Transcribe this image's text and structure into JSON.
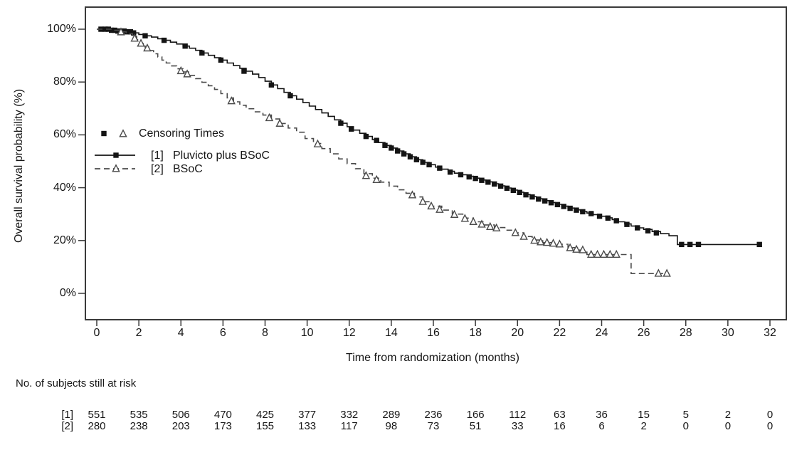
{
  "chart_data": {
    "type": "line",
    "subtype": "kaplan_meier_step",
    "title": "",
    "xlabel": "Time from randomization (months)",
    "ylabel": "Overall survival probability (%)",
    "xlim": [
      0,
      32
    ],
    "ylim": [
      0,
      100
    ],
    "grid": false,
    "frame_color": "#3a3a3a",
    "x_ticks": [
      0,
      2,
      4,
      6,
      8,
      10,
      12,
      14,
      16,
      18,
      20,
      22,
      24,
      26,
      28,
      30,
      32
    ],
    "y_ticks": [
      {
        "value": 100,
        "label": "100%"
      },
      {
        "value": 80,
        "label": "80%"
      },
      {
        "value": 60,
        "label": "60%"
      },
      {
        "value": 40,
        "label": "40%"
      },
      {
        "value": 20,
        "label": "20%"
      },
      {
        "value": 0,
        "label": "0%"
      }
    ],
    "legend": {
      "censoring_label": "Censoring Times",
      "position": "inside-left"
    },
    "series": [
      {
        "id": "[1]",
        "name": "Pluvicto plus BSoC",
        "line": "solid",
        "marker": "filled-square",
        "color": "#141414",
        "steps": [
          [
            0,
            100
          ],
          [
            0.6,
            99.6
          ],
          [
            1,
            99.3
          ],
          [
            1.4,
            99
          ],
          [
            1.7,
            98.6
          ],
          [
            2,
            98
          ],
          [
            2.3,
            97.5
          ],
          [
            2.6,
            97
          ],
          [
            2.9,
            96.4
          ],
          [
            3.2,
            95.8
          ],
          [
            3.5,
            95.1
          ],
          [
            3.8,
            94.4
          ],
          [
            4.1,
            93.6
          ],
          [
            4.4,
            92.8
          ],
          [
            4.7,
            92
          ],
          [
            5,
            91
          ],
          [
            5.3,
            90.1
          ],
          [
            5.6,
            89.2
          ],
          [
            5.9,
            88.3
          ],
          [
            6.2,
            87.2
          ],
          [
            6.5,
            86.2
          ],
          [
            6.8,
            85.2
          ],
          [
            7.1,
            84.1
          ],
          [
            7.4,
            83
          ],
          [
            7.7,
            81.7
          ],
          [
            8,
            80.3
          ],
          [
            8.3,
            78.9
          ],
          [
            8.6,
            77.5
          ],
          [
            8.9,
            76.1
          ],
          [
            9.2,
            74.8
          ],
          [
            9.5,
            73.5
          ],
          [
            9.8,
            72.2
          ],
          [
            10.1,
            70.9
          ],
          [
            10.4,
            69.6
          ],
          [
            10.7,
            68.3
          ],
          [
            11,
            67
          ],
          [
            11.3,
            65.7
          ],
          [
            11.6,
            64.4
          ],
          [
            11.9,
            63.1
          ],
          [
            12.2,
            61.8
          ],
          [
            12.5,
            60.6
          ],
          [
            12.8,
            59.4
          ],
          [
            13.1,
            58.2
          ],
          [
            13.4,
            57.1
          ],
          [
            13.7,
            56
          ],
          [
            14,
            55
          ],
          [
            14.3,
            53.9
          ],
          [
            14.6,
            52.8
          ],
          [
            14.9,
            51.7
          ],
          [
            15.2,
            50.6
          ],
          [
            15.5,
            49.6
          ],
          [
            15.8,
            48.7
          ],
          [
            16.1,
            47.8
          ],
          [
            16.4,
            47
          ],
          [
            16.7,
            46.2
          ],
          [
            17,
            45.5
          ],
          [
            17.3,
            44.9
          ],
          [
            17.6,
            44.3
          ],
          [
            17.9,
            43.6
          ],
          [
            18.2,
            42.9
          ],
          [
            18.5,
            42.2
          ],
          [
            18.8,
            41.5
          ],
          [
            19.1,
            40.7
          ],
          [
            19.4,
            39.9
          ],
          [
            19.7,
            39.1
          ],
          [
            20,
            38.3
          ],
          [
            20.3,
            37.4
          ],
          [
            20.6,
            36.6
          ],
          [
            20.9,
            35.8
          ],
          [
            21.2,
            35.1
          ],
          [
            21.5,
            34.4
          ],
          [
            21.8,
            33.7
          ],
          [
            22.1,
            33
          ],
          [
            22.4,
            32.3
          ],
          [
            22.7,
            31.6
          ],
          [
            23,
            31
          ],
          [
            23.3,
            30.4
          ],
          [
            23.6,
            29.8
          ],
          [
            23.9,
            29.2
          ],
          [
            24.2,
            28.6
          ],
          [
            24.5,
            27.9
          ],
          [
            24.8,
            27.1
          ],
          [
            25.1,
            26.3
          ],
          [
            25.4,
            25.5
          ],
          [
            25.7,
            24.8
          ],
          [
            26,
            24.2
          ],
          [
            26.4,
            23.4
          ],
          [
            26.8,
            22.6
          ],
          [
            27.2,
            21.8
          ],
          [
            27.6,
            18.5
          ],
          [
            31.5,
            18.5
          ]
        ],
        "censor_times": [
          [
            0.2,
            100
          ],
          [
            0.4,
            100
          ],
          [
            0.55,
            100
          ],
          [
            0.7,
            99.6
          ],
          [
            0.85,
            99.6
          ],
          [
            1,
            99.3
          ],
          [
            1.15,
            99.3
          ],
          [
            1.3,
            99.3
          ],
          [
            1.45,
            99
          ],
          [
            1.6,
            99
          ],
          [
            1.75,
            98.6
          ],
          [
            2.3,
            97.5
          ],
          [
            3.2,
            95.8
          ],
          [
            4.2,
            93.6
          ],
          [
            5,
            91
          ],
          [
            5.9,
            88.3
          ],
          [
            7,
            84.1
          ],
          [
            8.3,
            78.9
          ],
          [
            9.2,
            74.8
          ],
          [
            11.6,
            64.4
          ],
          [
            12.1,
            62.2
          ],
          [
            12.8,
            59.4
          ],
          [
            13.3,
            57.9
          ],
          [
            13.7,
            56
          ],
          [
            14,
            55
          ],
          [
            14.3,
            53.9
          ],
          [
            14.6,
            52.8
          ],
          [
            14.9,
            51.7
          ],
          [
            15.2,
            50.6
          ],
          [
            15.5,
            49.6
          ],
          [
            15.8,
            48.7
          ],
          [
            16.3,
            47.4
          ],
          [
            16.8,
            45.9
          ],
          [
            17.3,
            44.9
          ],
          [
            17.7,
            44.1
          ],
          [
            18,
            43.5
          ],
          [
            18.3,
            42.8
          ],
          [
            18.6,
            42.1
          ],
          [
            18.9,
            41.4
          ],
          [
            19.2,
            40.6
          ],
          [
            19.5,
            39.8
          ],
          [
            19.8,
            39
          ],
          [
            20.1,
            38.2
          ],
          [
            20.4,
            37.3
          ],
          [
            20.7,
            36.5
          ],
          [
            21,
            35.7
          ],
          [
            21.3,
            35
          ],
          [
            21.6,
            34.3
          ],
          [
            21.9,
            33.6
          ],
          [
            22.2,
            32.9
          ],
          [
            22.5,
            32.2
          ],
          [
            22.8,
            31.5
          ],
          [
            23.1,
            30.9
          ],
          [
            23.5,
            30.2
          ],
          [
            23.9,
            29.2
          ],
          [
            24.3,
            28.5
          ],
          [
            24.7,
            27.5
          ],
          [
            25.2,
            26.1
          ],
          [
            25.7,
            24.8
          ],
          [
            26.2,
            23.7
          ],
          [
            26.6,
            22.9
          ],
          [
            27.8,
            18.5
          ],
          [
            28.2,
            18.5
          ],
          [
            28.6,
            18.5
          ],
          [
            31.5,
            18.5
          ]
        ]
      },
      {
        "id": "[2]",
        "name": "BSoC",
        "line": "dashed",
        "marker": "open-triangle",
        "color": "#4a4a4a",
        "steps": [
          [
            0,
            100
          ],
          [
            0.7,
            99.6
          ],
          [
            1.1,
            99
          ],
          [
            1.4,
            98.3
          ],
          [
            1.7,
            97.3
          ],
          [
            1.9,
            96
          ],
          [
            2.1,
            94.6
          ],
          [
            2.3,
            93.2
          ],
          [
            2.5,
            91.9
          ],
          [
            2.7,
            90.7
          ],
          [
            2.9,
            89.5
          ],
          [
            3.1,
            88.3
          ],
          [
            3.3,
            87.2
          ],
          [
            3.5,
            86.1
          ],
          [
            3.8,
            85
          ],
          [
            4.1,
            83.8
          ],
          [
            4.4,
            82.5
          ],
          [
            4.7,
            81.3
          ],
          [
            5,
            79.9
          ],
          [
            5.3,
            78.6
          ],
          [
            5.6,
            77.2
          ],
          [
            5.9,
            75.6
          ],
          [
            6.2,
            74
          ],
          [
            6.5,
            72.5
          ],
          [
            6.8,
            71.2
          ],
          [
            7.1,
            69.9
          ],
          [
            7.5,
            68.7
          ],
          [
            7.9,
            67.5
          ],
          [
            8.3,
            66
          ],
          [
            8.7,
            64.3
          ],
          [
            9.1,
            62.6
          ],
          [
            9.5,
            61
          ],
          [
            9.9,
            58.6
          ],
          [
            10.3,
            56.7
          ],
          [
            10.7,
            54.8
          ],
          [
            11.1,
            52.8
          ],
          [
            11.5,
            50.9
          ],
          [
            11.9,
            49.1
          ],
          [
            12.3,
            47.2
          ],
          [
            12.7,
            45.3
          ],
          [
            13.1,
            43.6
          ],
          [
            13.5,
            42.1
          ],
          [
            13.9,
            40.6
          ],
          [
            14.3,
            39.2
          ],
          [
            14.7,
            37.9
          ],
          [
            15.1,
            36.5
          ],
          [
            15.5,
            34.7
          ],
          [
            15.9,
            33
          ],
          [
            16.4,
            31.5
          ],
          [
            16.9,
            30
          ],
          [
            17.4,
            28.5
          ],
          [
            17.9,
            27.1
          ],
          [
            18.4,
            25.9
          ],
          [
            18.9,
            24.9
          ],
          [
            19.4,
            23.9
          ],
          [
            19.9,
            22.9
          ],
          [
            20.3,
            21.5
          ],
          [
            20.7,
            20.2
          ],
          [
            21.2,
            19.2
          ],
          [
            21.9,
            18.6
          ],
          [
            22.4,
            17.3
          ],
          [
            22.9,
            16.4
          ],
          [
            23.3,
            14.7
          ],
          [
            25.4,
            7.5
          ],
          [
            27.2,
            7.5
          ]
        ],
        "censor_times": [
          [
            1.15,
            98.9
          ],
          [
            1.8,
            96.5
          ],
          [
            2.1,
            94.6
          ],
          [
            2.4,
            92.8
          ],
          [
            4,
            84.2
          ],
          [
            4.3,
            83
          ],
          [
            6.4,
            72.8
          ],
          [
            8.2,
            66.4
          ],
          [
            8.7,
            64.3
          ],
          [
            10.5,
            56.5
          ],
          [
            12.8,
            44.5
          ],
          [
            13.3,
            43
          ],
          [
            15,
            37.2
          ],
          [
            15.5,
            34.7
          ],
          [
            15.9,
            33
          ],
          [
            16.3,
            31.7
          ],
          [
            17,
            29.8
          ],
          [
            17.5,
            28.3
          ],
          [
            17.9,
            27.1
          ],
          [
            18.3,
            26.1
          ],
          [
            18.7,
            25.2
          ],
          [
            19,
            24.7
          ],
          [
            19.9,
            22.9
          ],
          [
            20.3,
            21.5
          ],
          [
            20.8,
            20
          ],
          [
            21.1,
            19.4
          ],
          [
            21.4,
            19.2
          ],
          [
            21.7,
            18.9
          ],
          [
            22,
            18.6
          ],
          [
            22.5,
            17.2
          ],
          [
            22.8,
            16.6
          ],
          [
            23.1,
            16.4
          ],
          [
            23.5,
            14.7
          ],
          [
            23.8,
            14.7
          ],
          [
            24.1,
            14.7
          ],
          [
            24.4,
            14.7
          ],
          [
            24.7,
            14.7
          ],
          [
            26.7,
            7.5
          ],
          [
            27.1,
            7.5
          ]
        ]
      }
    ],
    "risk_table": {
      "title": "No. of subjects still at risk",
      "rows": [
        {
          "label": "[1]",
          "counts": [
            551,
            535,
            506,
            470,
            425,
            377,
            332,
            289,
            236,
            166,
            112,
            63,
            36,
            15,
            5,
            2,
            0
          ]
        },
        {
          "label": "[2]",
          "counts": [
            280,
            238,
            203,
            173,
            155,
            133,
            117,
            98,
            73,
            51,
            33,
            16,
            6,
            2,
            0,
            0,
            0
          ]
        }
      ]
    }
  }
}
